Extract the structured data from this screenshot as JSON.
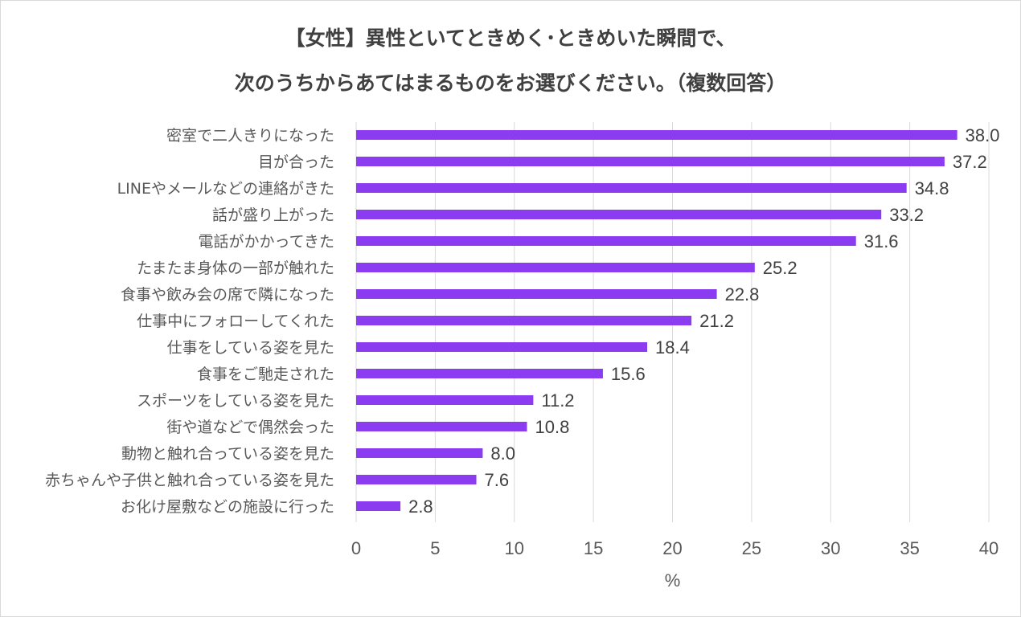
{
  "chart_data": {
    "type": "bar",
    "orientation": "horizontal",
    "title_lines": [
      "【女性】異性といてときめく･ときめいた瞬間で、",
      "次のうちからあてはまるものをお選びください。（複数回答）"
    ],
    "categories": [
      "密室で二人きりになった",
      "目が合った",
      "LINEやメールなどの連絡がきた",
      "話が盛り上がった",
      "電話がかかってきた",
      "たまたま身体の一部が触れた",
      "食事や飲み会の席で隣になった",
      "仕事中にフォローしてくれた",
      "仕事をしている姿を見た",
      "食事をご馳走された",
      "スポーツをしている姿を見た",
      "街や道などで偶然会った",
      "動物と触れ合っている姿を見た",
      "赤ちゃんや子供と触れ合っている姿を見た",
      "お化け屋敷などの施設に行った"
    ],
    "values": [
      38.0,
      37.2,
      34.8,
      33.2,
      31.6,
      25.2,
      22.8,
      21.2,
      18.4,
      15.6,
      11.2,
      10.8,
      8.0,
      7.6,
      2.8
    ],
    "value_labels": [
      "38.0",
      "37.2",
      "34.8",
      "33.2",
      "31.6",
      "25.2",
      "22.8",
      "21.2",
      "18.4",
      "15.6",
      "11.2",
      "10.8",
      "8.0",
      "7.6",
      "2.8"
    ],
    "xlim": [
      0,
      40
    ],
    "xticks": [
      "0",
      "5",
      "10",
      "15",
      "20",
      "25",
      "30",
      "35",
      "40"
    ],
    "xlabel": "%",
    "ylabel": "",
    "grid": "vertical",
    "legend": "none",
    "colors": {
      "bar": "#8c3cf0",
      "grid": "#d9d9d9"
    }
  }
}
